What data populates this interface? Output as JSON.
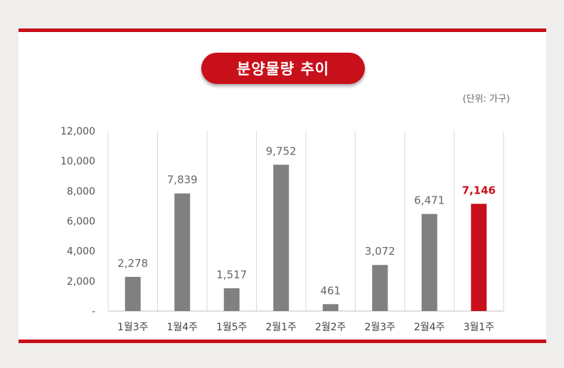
{
  "title": "분양물량 추이",
  "unit_label": "(단위: 가구)",
  "colors": {
    "accent": "#c8101a",
    "bar": "#808080",
    "highlight_label": "#c8101a",
    "label": "#666666"
  },
  "chart_data": {
    "type": "bar",
    "categories": [
      "1월3주",
      "1월4주",
      "1월5주",
      "2월1주",
      "2월2주",
      "2월3주",
      "2월4주",
      "3월1주"
    ],
    "values": [
      2278,
      7839,
      1517,
      9752,
      461,
      3072,
      6471,
      7146
    ],
    "value_labels": [
      "2,278",
      "7,839",
      "1,517",
      "9,752",
      "461",
      "3,072",
      "6,471",
      "7,146"
    ],
    "highlight_index": 7,
    "ylim": [
      0,
      12000
    ],
    "yticks": [
      0,
      2000,
      4000,
      6000,
      8000,
      10000,
      12000
    ],
    "ytick_labels": [
      "-",
      "2,000",
      "4,000",
      "6,000",
      "8,000",
      "10,000",
      "12,000"
    ],
    "grid": "vertical",
    "xlabel": "",
    "ylabel": ""
  }
}
